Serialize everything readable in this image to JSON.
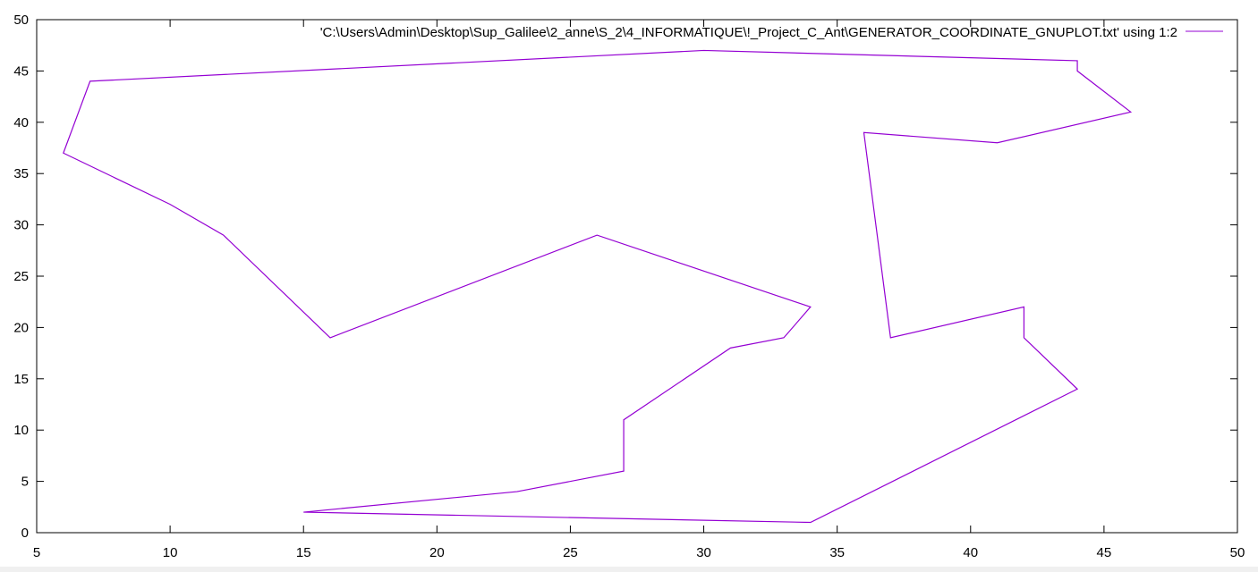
{
  "chart_data": {
    "type": "line",
    "title": "",
    "xlabel": "",
    "ylabel": "",
    "xlim": [
      5,
      50
    ],
    "ylim": [
      0,
      50
    ],
    "x_ticks": [
      5,
      10,
      15,
      20,
      25,
      30,
      35,
      40,
      45,
      50
    ],
    "y_ticks": [
      0,
      5,
      10,
      15,
      20,
      25,
      30,
      35,
      40,
      45,
      50
    ],
    "grid": false,
    "legend_position": "top-right",
    "series": [
      {
        "name": "'C:\\Users\\Admin\\Desktop\\Sup_Galilee\\2_anne\\S_2\\4_INFORMATIQUE\\!_Project_C_Ant\\GENERATOR_COORDINATE_GNUPLOT.txt' using 1:2",
        "color": "#9400d3",
        "x": [
          15,
          34,
          44,
          42,
          42,
          37,
          36,
          41,
          46,
          44,
          44,
          30,
          7,
          6,
          10,
          12,
          16,
          26,
          34,
          33,
          31,
          27,
          27,
          23,
          15
        ],
        "y": [
          2,
          1,
          14,
          19,
          22,
          19,
          39,
          38,
          41,
          45,
          46,
          47,
          44,
          37,
          32,
          29,
          19,
          29,
          22,
          19,
          18,
          11,
          6,
          4,
          2
        ]
      }
    ]
  }
}
